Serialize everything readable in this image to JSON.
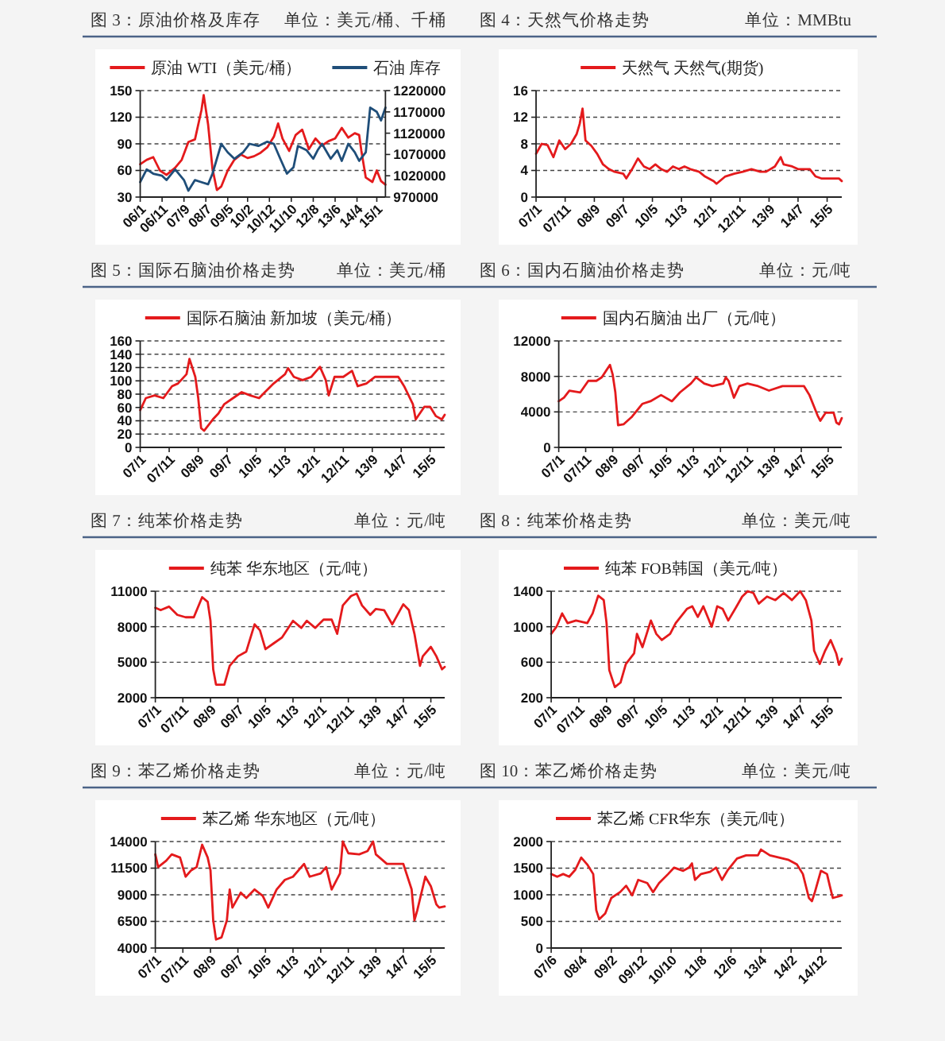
{
  "chart_data": [
    {
      "type": "line",
      "title": "图 3：原油价格及库存",
      "subtitle": "单位：美元/桶、千桶",
      "legend": "top",
      "grid": "y",
      "xlim": [
        "2006-01",
        "2015-05"
      ],
      "xticks": [
        {
          "value": "2006-01",
          "label": "06/1"
        },
        {
          "value": "2006-11",
          "label": "06/11"
        },
        {
          "value": "2007-09",
          "label": "07/9"
        },
        {
          "value": "2008-07",
          "label": "08/7"
        },
        {
          "value": "2009-05",
          "label": "09/5"
        },
        {
          "value": "2010-02",
          "label": "10/2"
        },
        {
          "value": "2010-12",
          "label": "10/12"
        },
        {
          "value": "2011-10",
          "label": "11/10"
        },
        {
          "value": "2012-08",
          "label": "12/8"
        },
        {
          "value": "2013-06",
          "label": "13/6"
        },
        {
          "value": "2014-04",
          "label": "14/4"
        },
        {
          "value": "2015-01",
          "label": "15/1"
        }
      ],
      "ylim": [
        30,
        150
      ],
      "yticks": [
        30,
        60,
        90,
        120,
        150
      ],
      "y2lim": [
        970000,
        1220000
      ],
      "y2ticks": [
        970000,
        1020000,
        1070000,
        1120000,
        1170000,
        1220000
      ],
      "series": [
        {
          "name": "原油 WTI（美元/桶）",
          "color": "#e41a1c",
          "x": [
            "2006-01",
            "2006-04",
            "2006-07",
            "2006-10",
            "2007-01",
            "2007-05",
            "2007-08",
            "2007-11",
            "2008-02",
            "2008-05",
            "2008-06",
            "2008-08",
            "2008-10",
            "2008-12",
            "2009-02",
            "2009-05",
            "2009-08",
            "2009-11",
            "2010-02",
            "2010-05",
            "2010-08",
            "2010-11",
            "2011-02",
            "2011-04",
            "2011-06",
            "2011-09",
            "2011-12",
            "2012-03",
            "2012-06",
            "2012-09",
            "2012-12",
            "2013-03",
            "2013-06",
            "2013-09",
            "2013-12",
            "2014-03",
            "2014-05",
            "2014-06",
            "2014-08",
            "2014-11",
            "2015-01",
            "2015-03",
            "2015-05"
          ],
          "values": [
            67,
            72,
            75,
            60,
            55,
            63,
            72,
            92,
            95,
            128,
            145,
            112,
            62,
            38,
            42,
            60,
            72,
            78,
            74,
            76,
            80,
            86,
            98,
            113,
            96,
            82,
            100,
            106,
            84,
            96,
            88,
            93,
            96,
            108,
            97,
            102,
            100,
            82,
            52,
            47,
            60,
            48,
            44
          ]
        },
        {
          "name": "石油 库存",
          "color": "#1f4e79",
          "axis": "y2",
          "x": [
            "2006-01",
            "2006-04",
            "2006-07",
            "2006-11",
            "2007-01",
            "2007-05",
            "2007-09",
            "2007-11",
            "2008-02",
            "2008-05",
            "2008-08",
            "2008-10",
            "2009-02",
            "2009-05",
            "2009-08",
            "2009-12",
            "2010-03",
            "2010-07",
            "2010-11",
            "2011-02",
            "2011-05",
            "2011-08",
            "2011-11",
            "2012-01",
            "2012-05",
            "2012-08",
            "2012-10",
            "2012-12",
            "2013-04",
            "2013-07",
            "2013-09",
            "2013-12",
            "2014-03",
            "2014-05",
            "2014-08",
            "2014-10",
            "2015-01",
            "2015-03",
            "2015-05"
          ],
          "values": [
            1005000,
            1035000,
            1025000,
            1020000,
            1010000,
            1035000,
            1010000,
            985000,
            1010000,
            1005000,
            1000000,
            1025000,
            1095000,
            1075000,
            1060000,
            1075000,
            1095000,
            1090000,
            1100000,
            1095000,
            1060000,
            1025000,
            1040000,
            1090000,
            1080000,
            1060000,
            1080000,
            1095000,
            1060000,
            1080000,
            1055000,
            1095000,
            1075000,
            1055000,
            1075000,
            1180000,
            1170000,
            1150000,
            1180000
          ]
        }
      ]
    },
    {
      "type": "line",
      "title": "图 4：天然气价格走势",
      "subtitle": "单位：MMBtu",
      "legend": "top",
      "grid": "y",
      "xlim": [
        "2007-01",
        "2015-10"
      ],
      "xticks": [
        {
          "value": "2007-01",
          "label": "07/1"
        },
        {
          "value": "2007-11",
          "label": "07/11"
        },
        {
          "value": "2008-09",
          "label": "08/9"
        },
        {
          "value": "2009-07",
          "label": "09/7"
        },
        {
          "value": "2010-05",
          "label": "10/5"
        },
        {
          "value": "2011-03",
          "label": "11/3"
        },
        {
          "value": "2012-01",
          "label": "12/1"
        },
        {
          "value": "2012-11",
          "label": "12/11"
        },
        {
          "value": "2013-09",
          "label": "13/9"
        },
        {
          "value": "2014-07",
          "label": "14/7"
        },
        {
          "value": "2015-05",
          "label": "15/5"
        }
      ],
      "ylim": [
        0,
        16
      ],
      "yticks": [
        0,
        4,
        8,
        12,
        16
      ],
      "series": [
        {
          "name": "天然气 天然气(期货)",
          "color": "#e41a1c",
          "x": [
            "2007-01",
            "2007-03",
            "2007-05",
            "2007-07",
            "2007-09",
            "2007-11",
            "2008-01",
            "2008-03",
            "2008-04",
            "2008-05",
            "2008-06",
            "2008-08",
            "2008-10",
            "2008-12",
            "2009-02",
            "2009-04",
            "2009-07",
            "2009-08",
            "2009-10",
            "2009-12",
            "2010-02",
            "2010-04",
            "2010-06",
            "2010-08",
            "2010-10",
            "2010-12",
            "2011-02",
            "2011-04",
            "2011-06",
            "2011-09",
            "2011-11",
            "2012-02",
            "2012-03",
            "2012-06",
            "2012-09",
            "2012-12",
            "2013-03",
            "2013-06",
            "2013-08",
            "2013-11",
            "2014-01",
            "2014-02",
            "2014-05",
            "2014-07",
            "2014-11",
            "2015-01",
            "2015-03",
            "2015-06",
            "2015-09",
            "2015-10"
          ],
          "values": [
            6.5,
            8.0,
            7.8,
            6.0,
            8.5,
            7.2,
            8.0,
            9.5,
            11.0,
            13.3,
            8.5,
            7.7,
            6.5,
            4.9,
            4.2,
            3.8,
            3.5,
            2.8,
            4.2,
            5.8,
            4.6,
            4.2,
            4.9,
            4.2,
            3.8,
            4.6,
            4.2,
            4.6,
            4.2,
            3.8,
            3.1,
            2.4,
            2.0,
            3.1,
            3.5,
            3.8,
            4.2,
            3.8,
            3.8,
            4.6,
            6.0,
            4.9,
            4.6,
            4.2,
            4.2,
            3.1,
            2.8,
            2.8,
            2.8,
            2.4
          ]
        }
      ]
    },
    {
      "type": "line",
      "title": "图 5：国际石脑油价格走势",
      "subtitle": "单位：美元/桶",
      "legend": "top",
      "grid": "y",
      "xlim": [
        "2007-01",
        "2015-10"
      ],
      "xticks": [
        {
          "value": "2007-01",
          "label": "07/1"
        },
        {
          "value": "2007-11",
          "label": "07/11"
        },
        {
          "value": "2008-09",
          "label": "08/9"
        },
        {
          "value": "2009-07",
          "label": "09/7"
        },
        {
          "value": "2010-05",
          "label": "10/5"
        },
        {
          "value": "2011-03",
          "label": "11/3"
        },
        {
          "value": "2012-01",
          "label": "12/1"
        },
        {
          "value": "2012-11",
          "label": "12/11"
        },
        {
          "value": "2013-09",
          "label": "13/9"
        },
        {
          "value": "2014-07",
          "label": "14/7"
        },
        {
          "value": "2015-05",
          "label": "15/5"
        }
      ],
      "ylim": [
        0,
        160
      ],
      "yticks": [
        0,
        20,
        40,
        60,
        80,
        100,
        120,
        140,
        160
      ],
      "series": [
        {
          "name": "国际石脑油 新加坡（美元/桶）",
          "color": "#e41a1c",
          "x": [
            "2007-01",
            "2007-03",
            "2007-06",
            "2007-09",
            "2007-12",
            "2008-02",
            "2008-05",
            "2008-06",
            "2008-08",
            "2008-09",
            "2008-10",
            "2008-11",
            "2009-02",
            "2009-04",
            "2009-06",
            "2009-09",
            "2009-12",
            "2010-03",
            "2010-06",
            "2010-08",
            "2010-11",
            "2011-03",
            "2011-04",
            "2011-06",
            "2011-09",
            "2011-12",
            "2012-03",
            "2012-05",
            "2012-06",
            "2012-08",
            "2012-11",
            "2013-02",
            "2013-04",
            "2013-07",
            "2013-10",
            "2014-02",
            "2014-06",
            "2014-08",
            "2014-11",
            "2014-12",
            "2015-03",
            "2015-05",
            "2015-07",
            "2015-09",
            "2015-10"
          ],
          "values": [
            56,
            74,
            78,
            74,
            92,
            96,
            110,
            133,
            106,
            74,
            29,
            25,
            42,
            51,
            65,
            74,
            83,
            78,
            74,
            83,
            96,
            110,
            119,
            106,
            101,
            106,
            121,
            101,
            78,
            106,
            106,
            115,
            92,
            96,
            106,
            106,
            106,
            92,
            65,
            42,
            61,
            61,
            47,
            42,
            49
          ]
        }
      ]
    },
    {
      "type": "line",
      "title": "图 6：国内石脑油价格走势",
      "subtitle": "单位：元/吨",
      "legend": "top",
      "grid": "y",
      "xlim": [
        "2007-01",
        "2015-10"
      ],
      "xticks": [
        {
          "value": "2007-01",
          "label": "07/1"
        },
        {
          "value": "2007-11",
          "label": "07/11"
        },
        {
          "value": "2008-09",
          "label": "08/9"
        },
        {
          "value": "2009-07",
          "label": "09/7"
        },
        {
          "value": "2010-05",
          "label": "10/5"
        },
        {
          "value": "2011-03",
          "label": "11/3"
        },
        {
          "value": "2012-01",
          "label": "12/1"
        },
        {
          "value": "2012-11",
          "label": "12/11"
        },
        {
          "value": "2013-09",
          "label": "13/9"
        },
        {
          "value": "2014-07",
          "label": "14/7"
        },
        {
          "value": "2015-05",
          "label": "15/5"
        }
      ],
      "ylim": [
        0,
        12000
      ],
      "yticks": [
        0,
        4000,
        8000,
        12000
      ],
      "series": [
        {
          "name": "国内石脑油 出厂（元/吨）",
          "color": "#e41a1c",
          "x": [
            "2007-01",
            "2007-03",
            "2007-05",
            "2007-09",
            "2007-12",
            "2008-03",
            "2008-05",
            "2008-08",
            "2008-09",
            "2008-10",
            "2008-11",
            "2009-01",
            "2009-04",
            "2009-08",
            "2009-11",
            "2010-03",
            "2010-07",
            "2010-10",
            "2011-02",
            "2011-04",
            "2011-07",
            "2011-10",
            "2012-02",
            "2012-03",
            "2012-04",
            "2012-06",
            "2012-08",
            "2012-11",
            "2013-03",
            "2013-07",
            "2013-12",
            "2014-04",
            "2014-08",
            "2014-10",
            "2015-01",
            "2015-02",
            "2015-04",
            "2015-07",
            "2015-08",
            "2015-09",
            "2015-10"
          ],
          "values": [
            5200,
            5600,
            6400,
            6200,
            7500,
            7500,
            7900,
            9300,
            8200,
            6200,
            2500,
            2600,
            3400,
            4900,
            5200,
            5900,
            5200,
            6200,
            7200,
            7900,
            7200,
            6900,
            7200,
            7900,
            7500,
            5600,
            6900,
            7200,
            6900,
            6400,
            6900,
            6900,
            6900,
            5900,
            3600,
            3000,
            3900,
            3900,
            2800,
            2600,
            3300
          ]
        }
      ]
    },
    {
      "type": "line",
      "title": "图 7：纯苯价格走势",
      "subtitle": "单位：元/吨",
      "legend": "top",
      "grid": "y",
      "xlim": [
        "2007-01",
        "2015-10"
      ],
      "xticks": [
        {
          "value": "2007-01",
          "label": "07/1"
        },
        {
          "value": "2007-11",
          "label": "07/11"
        },
        {
          "value": "2008-09",
          "label": "08/9"
        },
        {
          "value": "2009-07",
          "label": "09/7"
        },
        {
          "value": "2010-05",
          "label": "10/5"
        },
        {
          "value": "2011-03",
          "label": "11/3"
        },
        {
          "value": "2012-01",
          "label": "12/1"
        },
        {
          "value": "2012-11",
          "label": "12/11"
        },
        {
          "value": "2013-09",
          "label": "13/9"
        },
        {
          "value": "2014-07",
          "label": "14/7"
        },
        {
          "value": "2015-05",
          "label": "15/5"
        }
      ],
      "ylim": [
        2000,
        11000
      ],
      "yticks": [
        2000,
        5000,
        8000,
        11000
      ],
      "series": [
        {
          "name": "纯苯 华东地区（元/吨）",
          "color": "#e41a1c",
          "x": [
            "2007-01",
            "2007-03",
            "2007-06",
            "2007-09",
            "2007-12",
            "2008-03",
            "2008-06",
            "2008-08",
            "2008-09",
            "2008-10",
            "2008-11",
            "2009-02",
            "2009-04",
            "2009-07",
            "2009-10",
            "2010-01",
            "2010-03",
            "2010-05",
            "2010-08",
            "2010-11",
            "2011-03",
            "2011-06",
            "2011-08",
            "2011-11",
            "2012-02",
            "2012-05",
            "2012-07",
            "2012-09",
            "2012-12",
            "2013-02",
            "2013-04",
            "2013-07",
            "2013-09",
            "2013-12",
            "2014-03",
            "2014-07",
            "2014-09",
            "2014-11",
            "2015-01",
            "2015-02",
            "2015-05",
            "2015-07",
            "2015-09",
            "2015-10"
          ],
          "values": [
            9600,
            9400,
            9700,
            9000,
            8800,
            8800,
            10500,
            10100,
            8500,
            4400,
            3100,
            3100,
            4700,
            5500,
            5900,
            8200,
            7700,
            6100,
            6600,
            7100,
            8500,
            7900,
            8500,
            7900,
            8600,
            8600,
            7400,
            9800,
            10600,
            10800,
            9800,
            9000,
            9500,
            9400,
            8200,
            9900,
            9400,
            7400,
            4700,
            5500,
            6300,
            5500,
            4400,
            4600
          ]
        }
      ]
    },
    {
      "type": "line",
      "title": "图 8：纯苯价格走势",
      "subtitle": "单位：美元/吨",
      "legend": "top",
      "grid": "y",
      "xlim": [
        "2007-01",
        "2015-10"
      ],
      "xticks": [
        {
          "value": "2007-01",
          "label": "07/1"
        },
        {
          "value": "2007-11",
          "label": "07/11"
        },
        {
          "value": "2008-09",
          "label": "08/9"
        },
        {
          "value": "2009-07",
          "label": "09/7"
        },
        {
          "value": "2010-05",
          "label": "10/5"
        },
        {
          "value": "2011-03",
          "label": "11/3"
        },
        {
          "value": "2012-01",
          "label": "12/1"
        },
        {
          "value": "2012-11",
          "label": "12/11"
        },
        {
          "value": "2013-09",
          "label": "13/9"
        },
        {
          "value": "2014-07",
          "label": "14/7"
        },
        {
          "value": "2015-05",
          "label": "15/5"
        }
      ],
      "ylim": [
        200,
        1400
      ],
      "yticks": [
        200,
        600,
        1000,
        1400
      ],
      "series": [
        {
          "name": "纯苯 FOB韩国（美元/吨）",
          "color": "#e41a1c",
          "x": [
            "2007-01",
            "2007-03",
            "2007-05",
            "2007-07",
            "2007-10",
            "2008-02",
            "2008-04",
            "2008-06",
            "2008-08",
            "2008-09",
            "2008-10",
            "2008-12",
            "2009-02",
            "2009-04",
            "2009-07",
            "2009-08",
            "2009-10",
            "2010-01",
            "2010-03",
            "2010-05",
            "2010-08",
            "2010-10",
            "2011-02",
            "2011-04",
            "2011-06",
            "2011-08",
            "2011-11",
            "2012-01",
            "2012-03",
            "2012-05",
            "2012-08",
            "2012-10",
            "2012-12",
            "2013-02",
            "2013-04",
            "2013-07",
            "2013-10",
            "2014-01",
            "2014-04",
            "2014-07",
            "2014-09",
            "2014-11",
            "2014-12",
            "2015-02",
            "2015-04",
            "2015-06",
            "2015-08",
            "2015-09",
            "2015-10"
          ],
          "values": [
            920,
            1000,
            1150,
            1040,
            1070,
            1040,
            1150,
            1350,
            1300,
            1040,
            510,
            320,
            370,
            580,
            700,
            920,
            770,
            1070,
            920,
            850,
            920,
            1040,
            1200,
            1230,
            1110,
            1230,
            1000,
            1230,
            1200,
            1070,
            1230,
            1340,
            1400,
            1380,
            1260,
            1340,
            1300,
            1380,
            1300,
            1400,
            1300,
            1070,
            730,
            580,
            730,
            850,
            700,
            570,
            640
          ]
        }
      ]
    },
    {
      "type": "line",
      "title": "图 9：苯乙烯价格走势",
      "subtitle": "单位：元/吨",
      "legend": "top",
      "grid": "y",
      "xlim": [
        "2007-01",
        "2015-10"
      ],
      "xticks": [
        {
          "value": "2007-01",
          "label": "07/1"
        },
        {
          "value": "2007-11",
          "label": "07/11"
        },
        {
          "value": "2008-09",
          "label": "08/9"
        },
        {
          "value": "2009-07",
          "label": "09/7"
        },
        {
          "value": "2010-05",
          "label": "10/5"
        },
        {
          "value": "2011-03",
          "label": "11/3"
        },
        {
          "value": "2012-01",
          "label": "12/1"
        },
        {
          "value": "2012-11",
          "label": "12/11"
        },
        {
          "value": "2013-09",
          "label": "13/9"
        },
        {
          "value": "2014-07",
          "label": "14/7"
        },
        {
          "value": "2015-05",
          "label": "15/5"
        }
      ],
      "ylim": [
        4000,
        14000
      ],
      "yticks": [
        4000,
        6500,
        9000,
        11500,
        14000
      ],
      "series": [
        {
          "name": "苯乙烯 华东地区（元/吨）",
          "color": "#e41a1c",
          "x": [
            "2007-01",
            "2007-02",
            "2007-05",
            "2007-07",
            "2007-10",
            "2007-12",
            "2008-02",
            "2008-04",
            "2008-06",
            "2008-08",
            "2008-09",
            "2008-10",
            "2008-11",
            "2009-01",
            "2009-03",
            "2009-04",
            "2009-05",
            "2009-08",
            "2009-10",
            "2010-01",
            "2010-04",
            "2010-06",
            "2010-09",
            "2010-12",
            "2011-03",
            "2011-07",
            "2011-09",
            "2012-01",
            "2012-03",
            "2012-05",
            "2012-08",
            "2012-09",
            "2012-11",
            "2013-03",
            "2013-06",
            "2013-08",
            "2013-09",
            "2014-01",
            "2014-04",
            "2014-07",
            "2014-10",
            "2014-11",
            "2014-12",
            "2015-03",
            "2015-05",
            "2015-07",
            "2015-08",
            "2015-10"
          ],
          "values": [
            12800,
            11600,
            12200,
            12800,
            12500,
            10700,
            11300,
            11600,
            13700,
            12500,
            11300,
            6600,
            4800,
            5000,
            6600,
            9500,
            7800,
            9200,
            8700,
            9500,
            8900,
            7800,
            9500,
            10400,
            10700,
            11900,
            10700,
            11000,
            11600,
            9500,
            11000,
            14000,
            12900,
            12800,
            13100,
            14000,
            12800,
            11900,
            11900,
            11900,
            9500,
            6600,
            7500,
            10700,
            9800,
            8100,
            7800,
            7900
          ]
        }
      ]
    },
    {
      "type": "line",
      "title": "图 10：苯乙烯价格走势",
      "subtitle": "单位：美元/吨",
      "legend": "top",
      "grid": "y",
      "xlim": [
        "2007-06",
        "2015-07"
      ],
      "xticks": [
        {
          "value": "2007-06",
          "label": "07/6"
        },
        {
          "value": "2008-04",
          "label": "08/4"
        },
        {
          "value": "2009-02",
          "label": "09/2"
        },
        {
          "value": "2009-12",
          "label": "09/12"
        },
        {
          "value": "2010-10",
          "label": "10/10"
        },
        {
          "value": "2011-08",
          "label": "11/8"
        },
        {
          "value": "2012-06",
          "label": "12/6"
        },
        {
          "value": "2013-04",
          "label": "13/4"
        },
        {
          "value": "2014-02",
          "label": "14/2"
        },
        {
          "value": "2014-12",
          "label": "14/12"
        }
      ],
      "ylim": [
        0,
        2000
      ],
      "yticks": [
        0,
        500,
        1000,
        1500,
        2000
      ],
      "series": [
        {
          "name": "苯乙烯 CFR华东（美元/吨）",
          "color": "#e41a1c",
          "x": [
            "2007-06",
            "2007-08",
            "2007-10",
            "2007-12",
            "2008-02",
            "2008-04",
            "2008-06",
            "2008-08",
            "2008-09",
            "2008-10",
            "2008-12",
            "2009-02",
            "2009-05",
            "2009-07",
            "2009-09",
            "2009-11",
            "2010-02",
            "2010-04",
            "2010-06",
            "2010-09",
            "2010-11",
            "2011-02",
            "2011-04",
            "2011-05",
            "2011-06",
            "2011-08",
            "2011-11",
            "2012-01",
            "2012-03",
            "2012-05",
            "2012-08",
            "2012-11",
            "2013-03",
            "2013-04",
            "2013-07",
            "2013-10",
            "2014-01",
            "2014-04",
            "2014-06",
            "2014-08",
            "2014-09",
            "2014-10",
            "2014-12",
            "2015-02",
            "2015-03",
            "2015-04",
            "2015-06",
            "2015-07"
          ],
          "values": [
            1390,
            1340,
            1390,
            1340,
            1470,
            1700,
            1570,
            1390,
            710,
            540,
            650,
            940,
            1050,
            1170,
            990,
            1280,
            1220,
            1050,
            1220,
            1390,
            1510,
            1450,
            1510,
            1590,
            1280,
            1390,
            1430,
            1510,
            1280,
            1470,
            1680,
            1740,
            1740,
            1850,
            1740,
            1700,
            1660,
            1570,
            1390,
            940,
            880,
            1050,
            1450,
            1390,
            1170,
            940,
            970,
            990
          ]
        }
      ]
    }
  ]
}
